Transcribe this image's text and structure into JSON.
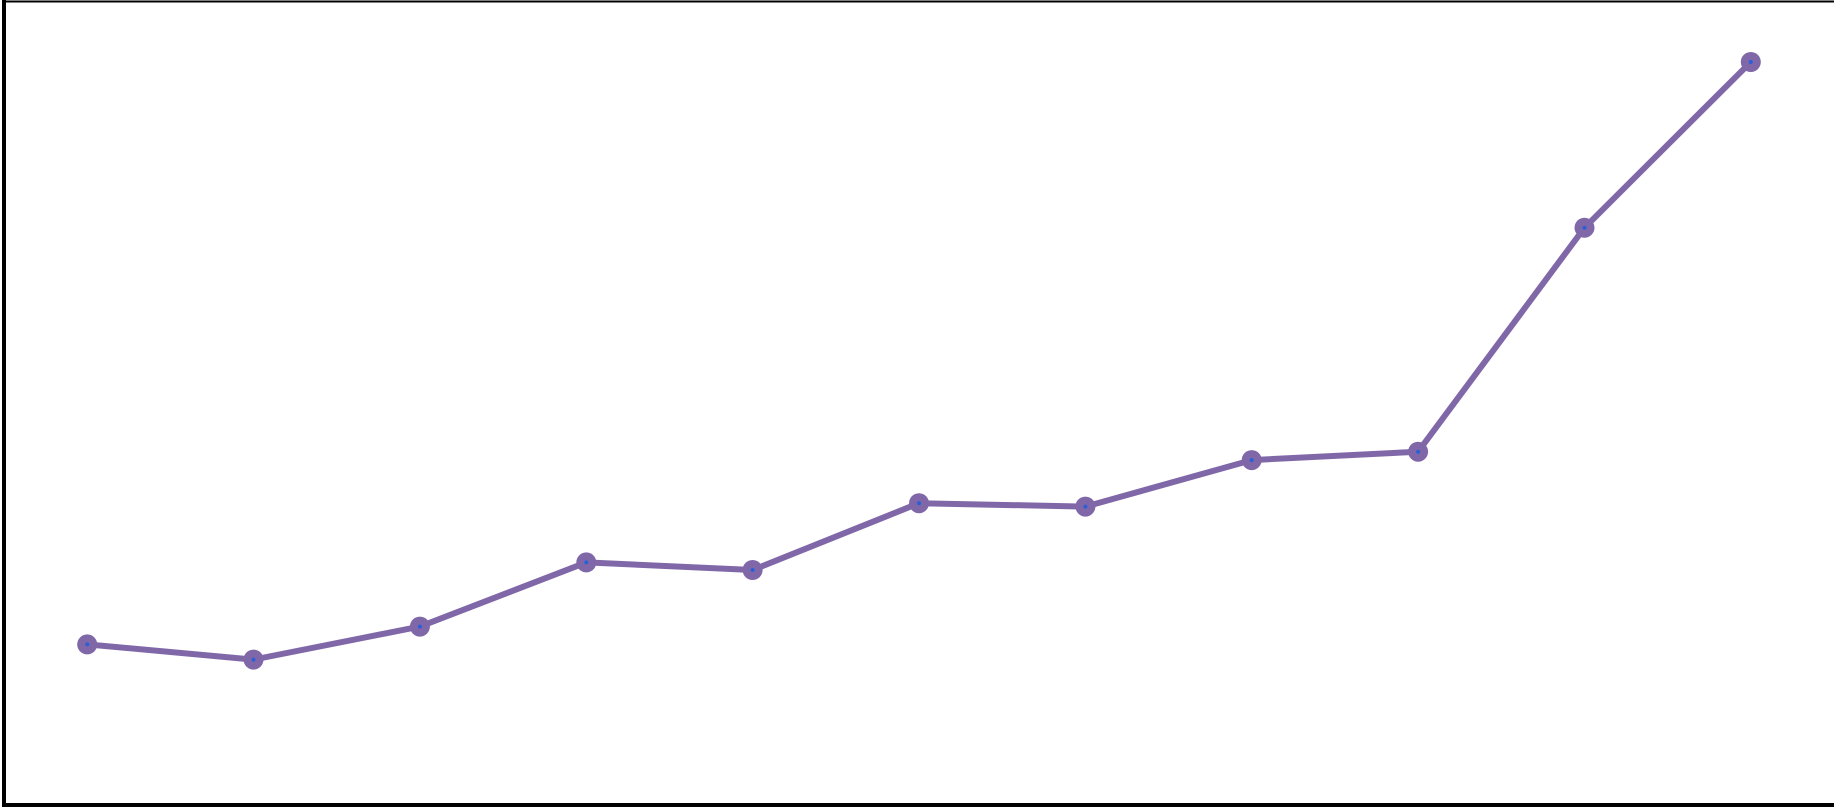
{
  "chart_data": {
    "type": "line",
    "title": "",
    "xlabel": "",
    "ylabel": "",
    "x": [
      1,
      2,
      3,
      4,
      5,
      6,
      7,
      8,
      9,
      10,
      11
    ],
    "series": [
      {
        "values": [
          19.0,
          17.2,
          21.1,
          28.7,
          27.8,
          35.7,
          35.3,
          40.8,
          41.8,
          68.3,
          87.9
        ],
        "color": "#8068a8",
        "marker_color": "#8068a8",
        "marker_center_color": "#2a5fd8"
      }
    ],
    "xlim": [
      0.5,
      11.5
    ],
    "ylim": [
      0,
      95
    ],
    "grid": false,
    "legend": "none",
    "axes_color": "#000000",
    "background": "#ffffff"
  }
}
